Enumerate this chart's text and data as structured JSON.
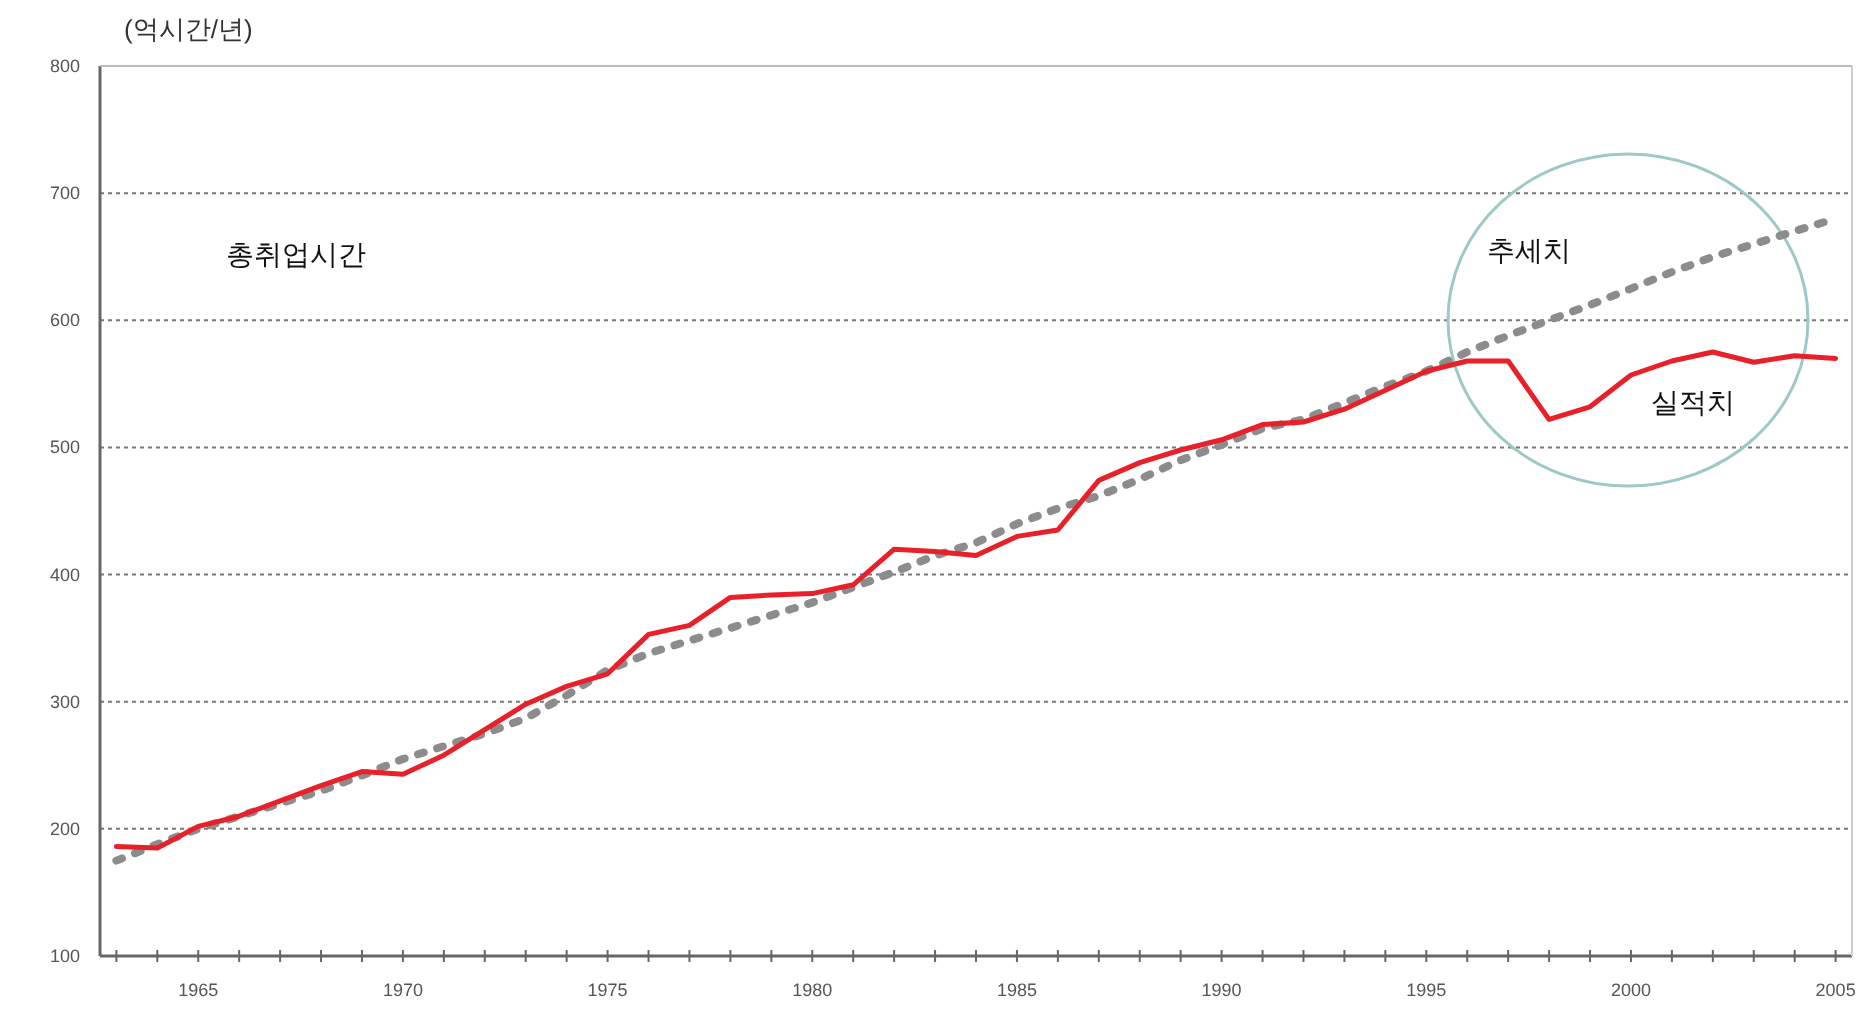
{
  "chart_data": {
    "type": "line",
    "ylabel": "(억시간/년)",
    "annotations": [
      "총취업시간"
    ],
    "x": [
      1963,
      1964,
      1965,
      1966,
      1967,
      1968,
      1969,
      1970,
      1971,
      1972,
      1973,
      1974,
      1975,
      1976,
      1977,
      1978,
      1979,
      1980,
      1981,
      1982,
      1983,
      1984,
      1985,
      1986,
      1987,
      1988,
      1989,
      1990,
      1991,
      1992,
      1993,
      1994,
      1995,
      1996,
      1997,
      1998,
      1999,
      2000,
      2001,
      2002,
      2003,
      2004,
      2005
    ],
    "series": [
      {
        "name": "추세치",
        "color": "#8c8c8c",
        "line_style": "dotted",
        "values": [
          175,
          188,
          200,
          210,
          220,
          230,
          242,
          255,
          265,
          275,
          287,
          305,
          325,
          338,
          348,
          358,
          368,
          378,
          390,
          402,
          415,
          425,
          440,
          452,
          462,
          475,
          490,
          502,
          515,
          522,
          535,
          548,
          560,
          575,
          588,
          600,
          612,
          625,
          638,
          650,
          660,
          670,
          680
        ]
      },
      {
        "name": "실적치",
        "color": "#e8202a",
        "line_style": "solid",
        "values": [
          186,
          185,
          202,
          210,
          222,
          234,
          245,
          243,
          258,
          278,
          298,
          312,
          322,
          353,
          360,
          382,
          384,
          385,
          392,
          420,
          418,
          415,
          430,
          435,
          474,
          488,
          498,
          506,
          518,
          520,
          530,
          545,
          560,
          568,
          568,
          522,
          532,
          557,
          568,
          575,
          567,
          572,
          570
        ]
      }
    ],
    "xlim": [
      1962.6,
      2005.4
    ],
    "ylim": [
      100,
      800
    ],
    "yticks": [
      100,
      200,
      300,
      400,
      500,
      600,
      700,
      800
    ],
    "xticks": [
      {
        "value": 1963,
        "label": null
      },
      {
        "value": 1964,
        "label": null
      },
      1965,
      {
        "value": 1966,
        "label": null
      },
      {
        "value": 1967,
        "label": null
      },
      {
        "value": 1968,
        "label": null
      },
      {
        "value": 1969,
        "label": null
      },
      1970,
      {
        "value": 1971,
        "label": null
      },
      {
        "value": 1972,
        "label": null
      },
      {
        "value": 1973,
        "label": null
      },
      {
        "value": 1974,
        "label": null
      },
      1975,
      {
        "value": 1976,
        "label": null
      },
      {
        "value": 1977,
        "label": null
      },
      {
        "value": 1978,
        "label": null
      },
      {
        "value": 1979,
        "label": null
      },
      1980,
      {
        "value": 1981,
        "label": null
      },
      {
        "value": 1982,
        "label": null
      },
      {
        "value": 1983,
        "label": null
      },
      {
        "value": 1984,
        "label": null
      },
      1985,
      {
        "value": 1986,
        "label": null
      },
      {
        "value": 1987,
        "label": null
      },
      {
        "value": 1988,
        "label": null
      },
      {
        "value": 1989,
        "label": null
      },
      1990,
      {
        "value": 1991,
        "label": null
      },
      {
        "value": 1992,
        "label": null
      },
      {
        "value": 1993,
        "label": null
      },
      {
        "value": 1994,
        "label": null
      },
      1995,
      {
        "value": 1996,
        "label": null
      },
      {
        "value": 1997,
        "label": null
      },
      {
        "value": 1998,
        "label": null
      },
      {
        "value": 1999,
        "label": null
      },
      2000,
      {
        "value": 2001,
        "label": null
      },
      {
        "value": 2002,
        "label": null
      },
      {
        "value": 2003,
        "label": null
      },
      {
        "value": 2004,
        "label": null
      },
      2005
    ],
    "grid": "y",
    "marker": "none"
  }
}
